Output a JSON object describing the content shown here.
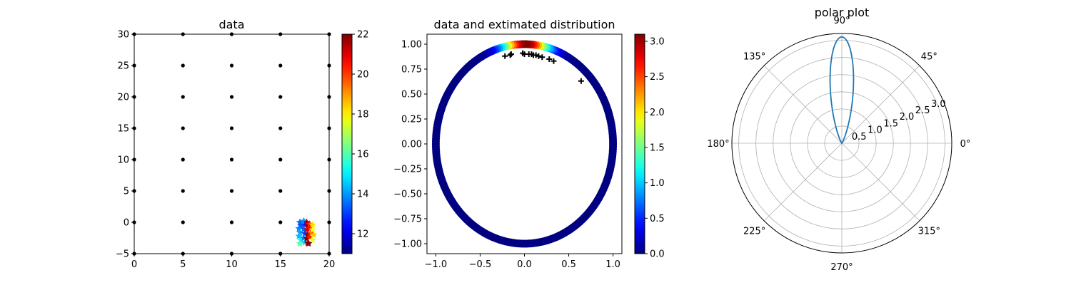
{
  "chart_data": [
    {
      "type": "scatter",
      "title": "data",
      "xlim": [
        0,
        20
      ],
      "ylim": [
        -5,
        30
      ],
      "xticks": [
        "0",
        "5",
        "10",
        "15",
        "20"
      ],
      "yticks": [
        "−5",
        "0",
        "5",
        "10",
        "15",
        "20",
        "25",
        "30"
      ],
      "series": [
        {
          "marker": "dot",
          "color": "#000000",
          "points": [
            [
              0,
              -5
            ],
            [
              0,
              0
            ],
            [
              0,
              5
            ],
            [
              0,
              10
            ],
            [
              0,
              15
            ],
            [
              0,
              20
            ],
            [
              0,
              25
            ],
            [
              0,
              30
            ],
            [
              5,
              -5
            ],
            [
              5,
              0
            ],
            [
              5,
              5
            ],
            [
              5,
              10
            ],
            [
              5,
              15
            ],
            [
              5,
              20
            ],
            [
              5,
              25
            ],
            [
              5,
              30
            ],
            [
              10,
              -5
            ],
            [
              10,
              0
            ],
            [
              10,
              5
            ],
            [
              10,
              10
            ],
            [
              10,
              15
            ],
            [
              10,
              20
            ],
            [
              10,
              25
            ],
            [
              10,
              30
            ],
            [
              15,
              -5
            ],
            [
              15,
              0
            ],
            [
              15,
              5
            ],
            [
              15,
              10
            ],
            [
              15,
              15
            ],
            [
              15,
              20
            ],
            [
              15,
              25
            ],
            [
              15,
              30
            ],
            [
              20,
              -5
            ],
            [
              20,
              0
            ],
            [
              20,
              5
            ],
            [
              20,
              10
            ],
            [
              20,
              15
            ],
            [
              20,
              20
            ],
            [
              20,
              25
            ],
            [
              20,
              30
            ]
          ]
        },
        {
          "marker": "star-colormapped",
          "colormap": "jet",
          "points": [
            [
              17.0,
              0.0,
              13.5
            ],
            [
              17.1,
              -0.5,
              13.2
            ],
            [
              16.9,
              -1.0,
              13.8
            ],
            [
              17.0,
              -1.6,
              14.1
            ],
            [
              16.9,
              -2.2,
              14.4
            ],
            [
              17.1,
              -2.8,
              15.0
            ],
            [
              17.0,
              -3.4,
              16.0
            ],
            [
              17.4,
              0.2,
              14.0
            ],
            [
              17.5,
              -0.4,
              12.8
            ],
            [
              17.4,
              -1.1,
              13.5
            ],
            [
              17.5,
              -1.8,
              13.1
            ],
            [
              17.4,
              -2.5,
              13.8
            ],
            [
              17.5,
              -3.2,
              14.6
            ],
            [
              17.7,
              0.0,
              21.5
            ],
            [
              17.8,
              -0.6,
              21.8
            ],
            [
              17.7,
              -1.2,
              21.0
            ],
            [
              17.8,
              -1.9,
              21.6
            ],
            [
              17.7,
              -2.6,
              22.0
            ],
            [
              17.8,
              -3.3,
              21.2
            ],
            [
              18.0,
              -0.3,
              20.2
            ],
            [
              18.0,
              -1.0,
              20.6
            ],
            [
              18.1,
              -1.7,
              19.8
            ],
            [
              18.0,
              -2.4,
              20.4
            ],
            [
              18.3,
              -0.4,
              18.2
            ],
            [
              18.3,
              -1.2,
              17.8
            ],
            [
              18.4,
              -2.0,
              18.5
            ],
            [
              18.3,
              -2.8,
              17.5
            ],
            [
              17.9,
              -3.4,
              22.0
            ]
          ]
        }
      ],
      "colorbar": {
        "min": 11,
        "max": 22,
        "colormap": "jet",
        "ticks": [
          "12",
          "14",
          "16",
          "18",
          "20",
          "22"
        ]
      }
    },
    {
      "type": "scatter",
      "title": "data and extimated distribution",
      "xlim": [
        -1.1,
        1.1
      ],
      "ylim": [
        -1.1,
        1.1
      ],
      "xticks": [
        "−1.0",
        "−0.5",
        "0.0",
        "0.5",
        "1.0"
      ],
      "yticks": [
        "−1.00",
        "−0.75",
        "−0.50",
        "−0.25",
        "0.00",
        "0.25",
        "0.50",
        "0.75",
        "1.00"
      ],
      "ring": {
        "radius": 1.0,
        "colormap": "jet",
        "peak_angle_deg": 90,
        "peak_value": 3.1,
        "kappa": 30
      },
      "data_points": [
        [
          -0.22,
          0.88
        ],
        [
          -0.16,
          0.89
        ],
        [
          -0.15,
          0.9
        ],
        [
          -0.02,
          0.91
        ],
        [
          0.0,
          0.9
        ],
        [
          0.05,
          0.9
        ],
        [
          0.08,
          0.9
        ],
        [
          0.1,
          0.89
        ],
        [
          0.13,
          0.89
        ],
        [
          0.16,
          0.88
        ],
        [
          0.2,
          0.87
        ],
        [
          0.28,
          0.85
        ],
        [
          0.33,
          0.83
        ],
        [
          0.64,
          0.63
        ]
      ],
      "colorbar": {
        "min": 0.0,
        "max": 3.1,
        "colormap": "jet",
        "ticks": [
          "0.0",
          "0.5",
          "1.0",
          "1.5",
          "2.0",
          "2.5",
          "3.0"
        ]
      }
    },
    {
      "type": "line",
      "projection": "polar",
      "title": "polar plot",
      "rmax": 3.2,
      "rticks": [
        "0.5",
        "1.0",
        "1.5",
        "2.0",
        "2.5",
        "3.0"
      ],
      "theta_ticks": [
        "0°",
        "45°",
        "90°",
        "135°",
        "180°",
        "225°",
        "270°",
        "315°"
      ],
      "curve": {
        "peak_angle_deg": 90,
        "peak_value": 3.1,
        "kappa": 30,
        "color": "#1f77b4"
      }
    }
  ]
}
